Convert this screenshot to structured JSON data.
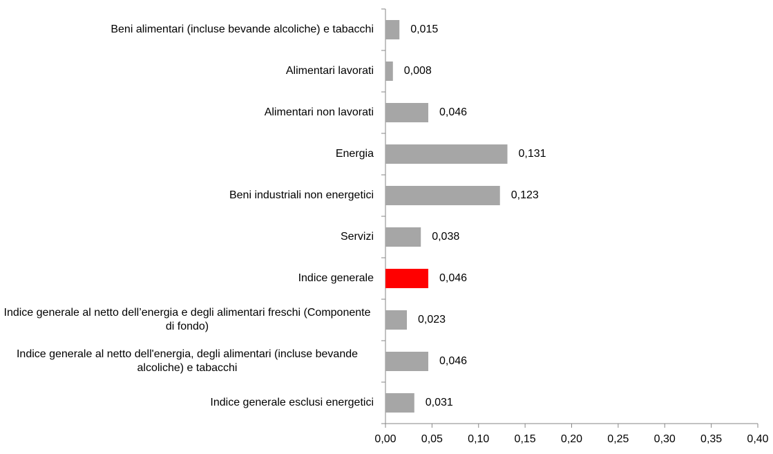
{
  "chart_data": {
    "type": "hbar",
    "categories": [
      "Beni alimentari (incluse bevande alcoliche) e tabacchi",
      "Alimentari lavorati",
      "Alimentari non lavorati",
      "Energia",
      "Beni industriali non energetici",
      "Servizi",
      "Indice generale",
      "Indice generale  al netto  dell’energia  e degli  alimentari freschi  (Componente  di fondo)",
      "Indice generale al netto dell'energia, degli alimentari (incluse bevande alcoliche) e tabacchi",
      "Indice generale esclusi energetici"
    ],
    "values": [
      0.015,
      0.008,
      0.046,
      0.131,
      0.123,
      0.038,
      0.046,
      0.023,
      0.046,
      0.031
    ],
    "value_labels": [
      "0,015",
      "0,008",
      "0,046",
      "0,131",
      "0,123",
      "0,038",
      "0,046",
      "0,023",
      "0,046",
      "0,031"
    ],
    "colors": [
      "#a6a6a6",
      "#a6a6a6",
      "#a6a6a6",
      "#a6a6a6",
      "#a6a6a6",
      "#a6a6a6",
      "#ff0000",
      "#a6a6a6",
      "#a6a6a6",
      "#a6a6a6"
    ],
    "xlim": [
      0,
      0.4
    ],
    "xticks": [
      {
        "value": 0,
        "label": "0,00"
      },
      {
        "value": 0.05,
        "label": "0,05"
      },
      {
        "value": 0.1,
        "label": "0,10"
      },
      {
        "value": 0.15,
        "label": "0,15"
      },
      {
        "value": 0.2,
        "label": "0,20"
      },
      {
        "value": 0.25,
        "label": "0,25"
      },
      {
        "value": 0.3,
        "label": "0,30"
      },
      {
        "value": 0.35,
        "label": "0,35"
      },
      {
        "value": 0.4,
        "label": "0,40"
      }
    ],
    "grid": false
  }
}
